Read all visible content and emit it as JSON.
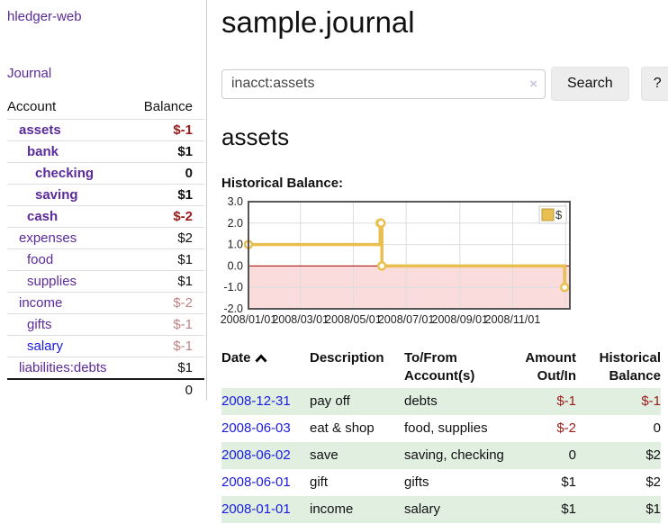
{
  "sidebar": {
    "brand": "hledger-web",
    "nav": {
      "journal": "Journal"
    },
    "accounts_header": {
      "account": "Account",
      "balance": "Balance"
    },
    "accounts": [
      {
        "name": "assets",
        "depth": 0,
        "balance": "$-1",
        "emphasis": true,
        "negative": "strong",
        "link_color": "purple"
      },
      {
        "name": "bank",
        "depth": 1,
        "balance": "$1",
        "emphasis": true,
        "negative": null,
        "link_color": "purple"
      },
      {
        "name": "checking",
        "depth": 2,
        "balance": "0",
        "emphasis": true,
        "negative": null,
        "link_color": "purple"
      },
      {
        "name": "saving",
        "depth": 2,
        "balance": "$1",
        "emphasis": true,
        "negative": null,
        "link_color": "purple"
      },
      {
        "name": "cash",
        "depth": 1,
        "balance": "$-2",
        "emphasis": true,
        "negative": "strong",
        "link_color": "purple"
      },
      {
        "name": "expenses",
        "depth": 0,
        "balance": "$2",
        "emphasis": false,
        "negative": null,
        "link_color": "purple"
      },
      {
        "name": "food",
        "depth": 1,
        "balance": "$1",
        "emphasis": false,
        "negative": null,
        "link_color": "purple"
      },
      {
        "name": "supplies",
        "depth": 1,
        "balance": "$1",
        "emphasis": false,
        "negative": null,
        "link_color": "purple"
      },
      {
        "name": "income",
        "depth": 0,
        "balance": "$-2",
        "emphasis": false,
        "negative": "soft",
        "link_color": "purple"
      },
      {
        "name": "gifts",
        "depth": 1,
        "balance": "$-1",
        "emphasis": false,
        "negative": "soft",
        "link_color": "purple"
      },
      {
        "name": "salary",
        "depth": 1,
        "balance": "$-1",
        "emphasis": false,
        "negative": "soft",
        "link_color": "blue"
      },
      {
        "name": "liabilities:debts",
        "depth": 0,
        "balance": "$1",
        "emphasis": false,
        "negative": null,
        "link_color": "purple"
      }
    ],
    "total": "0"
  },
  "main": {
    "title": "sample.journal",
    "search": {
      "value": "inacct:assets",
      "clear_icon": "×",
      "button": "Search",
      "help_button": "?"
    },
    "account_heading": "assets",
    "chart_label": "Historical Balance:"
  },
  "chart_data": {
    "type": "line",
    "title": "Historical Balance",
    "step": true,
    "x_domain": [
      "2008-01-01",
      "2009-01-06"
    ],
    "ylim": [
      -2.0,
      3.0
    ],
    "yticks": [
      3.0,
      2.0,
      1.0,
      0.0,
      -1.0,
      -2.0
    ],
    "xticks": [
      {
        "date": "2008-01-01",
        "label": "2008/01/01"
      },
      {
        "date": "2008-03-01",
        "label": "2008/03/01"
      },
      {
        "date": "2008-05-01",
        "label": "2008/05/01"
      },
      {
        "date": "2008-07-01",
        "label": "2008/07/01"
      },
      {
        "date": "2008-09-01",
        "label": "2008/09/01"
      },
      {
        "date": "2008-11-01",
        "label": "2008/11/01"
      },
      {
        "date": "2009-01-01",
        "label": ""
      }
    ],
    "series": [
      {
        "name": "$",
        "color": "#e9c04f",
        "points": [
          [
            "2008-01-01",
            1
          ],
          [
            "2008-06-01",
            2
          ],
          [
            "2008-06-02",
            2
          ],
          [
            "2008-06-03",
            0
          ],
          [
            "2008-12-31",
            -1
          ]
        ]
      }
    ],
    "legend": [
      {
        "label": "$",
        "color": "#e9c04f"
      }
    ],
    "legend_position": "top-right",
    "grid": true,
    "negative_region_color": "#fadcdc",
    "zero_line_color": "#a00000",
    "border_color": "#555"
  },
  "register": {
    "columns": [
      "Date",
      "Description",
      "To/From Account(s)",
      "Amount Out/In",
      "Historical Balance"
    ],
    "rows": [
      {
        "date": "2008-12-31",
        "description": "pay off",
        "accounts": "debts",
        "amount": "$-1",
        "balance": "$-1",
        "amount_negative": true,
        "balance_negative": true
      },
      {
        "date": "2008-06-03",
        "description": "eat & shop",
        "accounts": "food, supplies",
        "amount": "$-2",
        "balance": "0",
        "amount_negative": true,
        "balance_negative": false
      },
      {
        "date": "2008-06-02",
        "description": "save",
        "accounts": "saving, checking",
        "amount": "0",
        "balance": "$2",
        "amount_negative": false,
        "balance_negative": false
      },
      {
        "date": "2008-06-01",
        "description": "gift",
        "accounts": "gifts",
        "amount": "$1",
        "balance": "$2",
        "amount_negative": false,
        "balance_negative": false
      },
      {
        "date": "2008-01-01",
        "description": "income",
        "accounts": "salary",
        "amount": "$1",
        "balance": "$1",
        "amount_negative": false,
        "balance_negative": false
      }
    ]
  }
}
